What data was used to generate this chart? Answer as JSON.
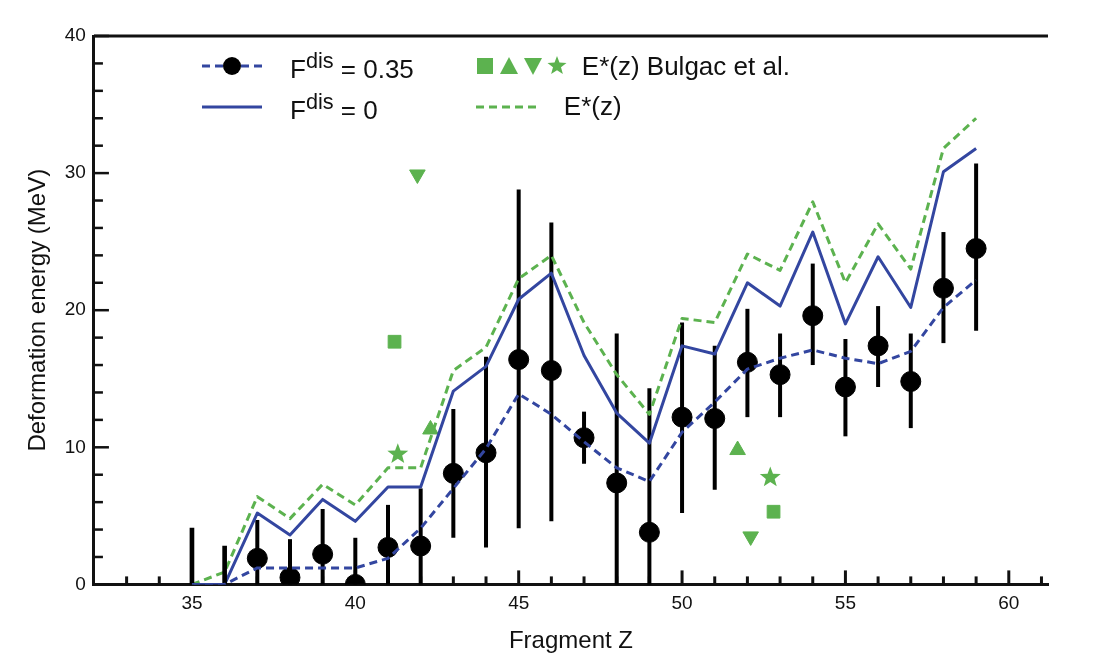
{
  "chart_data": {
    "type": "line",
    "xlabel": "Fragment Z",
    "ylabel": "Deformation energy (MeV)",
    "xlim": [
      32,
      61.2
    ],
    "ylim": [
      0,
      40
    ],
    "xticks": [
      {
        "value": 33,
        "label": null
      },
      {
        "value": 34,
        "label": null
      },
      35,
      {
        "value": 36,
        "label": null
      },
      {
        "value": 37,
        "label": null
      },
      {
        "value": 38,
        "label": null
      },
      {
        "value": 39,
        "label": null
      },
      40,
      {
        "value": 41,
        "label": null
      },
      {
        "value": 42,
        "label": null
      },
      {
        "value": 43,
        "label": null
      },
      {
        "value": 44,
        "label": null
      },
      45,
      {
        "value": 46,
        "label": null
      },
      {
        "value": 47,
        "label": null
      },
      {
        "value": 48,
        "label": null
      },
      {
        "value": 49,
        "label": null
      },
      50,
      {
        "value": 51,
        "label": null
      },
      {
        "value": 52,
        "label": null
      },
      {
        "value": 53,
        "label": null
      },
      {
        "value": 54,
        "label": null
      },
      55,
      {
        "value": 56,
        "label": null
      },
      {
        "value": 57,
        "label": null
      },
      {
        "value": 58,
        "label": null
      },
      {
        "value": 59,
        "label": null
      },
      60,
      {
        "value": 61,
        "label": null
      }
    ],
    "yticks": [
      0,
      {
        "value": 2,
        "label": null
      },
      {
        "value": 4,
        "label": null
      },
      {
        "value": 6,
        "label": null
      },
      {
        "value": 8,
        "label": null
      },
      10,
      {
        "value": 12,
        "label": null
      },
      {
        "value": 14,
        "label": null
      },
      {
        "value": 16,
        "label": null
      },
      {
        "value": 18,
        "label": null
      },
      20,
      {
        "value": 22,
        "label": null
      },
      {
        "value": 24,
        "label": null
      },
      {
        "value": 26,
        "label": null
      },
      {
        "value": 28,
        "label": null
      },
      30,
      {
        "value": 32,
        "label": null
      },
      {
        "value": 34,
        "label": null
      },
      {
        "value": 36,
        "label": null
      },
      {
        "value": 38,
        "label": null
      },
      40
    ],
    "grid": false,
    "legend": "top",
    "series": [
      {
        "name": "F$^{dis}$ = 0.35",
        "line_style": "dashed",
        "marker": "none",
        "color": "#3346a0",
        "x": [
          35,
          36,
          37,
          38,
          39,
          40,
          41,
          42,
          43,
          44,
          45,
          46,
          47,
          48,
          49,
          50,
          51,
          52,
          53,
          54,
          55,
          56,
          57,
          58,
          59
        ],
        "values": [
          0,
          0,
          1.2,
          1.2,
          1.2,
          1.2,
          1.9,
          4.1,
          7.0,
          9.9,
          13.9,
          12.4,
          10.4,
          8.5,
          7.5,
          11.1,
          13.3,
          15.7,
          16.5,
          17.1,
          16.5,
          16.1,
          17.0,
          20.2,
          22.2
        ]
      },
      {
        "type": "scatter",
        "marker": "circle",
        "color": "#000000",
        "x": [
          37,
          38,
          39,
          40,
          41,
          42,
          43,
          44,
          45,
          46,
          47,
          48,
          49,
          50,
          51,
          52,
          53,
          54,
          55,
          56,
          57,
          58,
          59
        ],
        "values": [
          1.9,
          0.5,
          2.2,
          0.0,
          2.7,
          2.8,
          8.1,
          9.6,
          16.4,
          15.6,
          10.7,
          7.4,
          3.8,
          12.2,
          12.1,
          16.2,
          15.3,
          19.6,
          14.4,
          17.4,
          14.8,
          21.6,
          24.5
        ],
        "errors": [
          [
            0,
            4.7
          ],
          [
            0,
            3.3
          ],
          [
            0,
            5.5
          ],
          [
            0,
            3.4
          ],
          [
            0,
            5.8
          ],
          [
            0,
            7.0
          ],
          [
            3.4,
            12.8
          ],
          [
            2.7,
            16.6
          ],
          [
            4.1,
            28.8
          ],
          [
            4.6,
            26.4
          ],
          [
            8.8,
            12.6
          ],
          [
            0,
            18.3
          ],
          [
            0,
            14.3
          ],
          [
            5.2,
            19.1
          ],
          [
            6.9,
            17.4
          ],
          [
            12.2,
            20.1
          ],
          [
            12.2,
            18.3
          ],
          [
            16.0,
            23.4
          ],
          [
            10.8,
            17.9
          ],
          [
            14.4,
            20.3
          ],
          [
            11.4,
            18.3
          ],
          [
            17.6,
            25.7
          ],
          [
            18.5,
            30.7
          ]
        ]
      },
      {
        "type": "bar",
        "color": "#000000",
        "x": [
          35,
          36
        ],
        "base": [
          0,
          0
        ],
        "values": [
          4.1,
          2.8
        ]
      },
      {
        "name": "F$^{dis}$ = 0",
        "line_style": "solid",
        "marker": "none",
        "color": "#3346a0",
        "x": [
          35,
          36,
          37,
          38,
          39,
          40,
          41,
          42,
          43,
          44,
          45,
          46,
          47,
          48,
          49,
          50,
          51,
          52,
          53,
          54,
          55,
          56,
          57,
          58,
          59
        ],
        "values": [
          0,
          0,
          5.2,
          3.6,
          6.2,
          4.6,
          7.1,
          7.1,
          14.1,
          15.9,
          20.8,
          22.7,
          16.7,
          12.5,
          10.3,
          17.4,
          16.8,
          22.0,
          20.3,
          25.7,
          19.0,
          23.9,
          20.2,
          30.1,
          31.8
        ]
      },
      {
        "name": "E*(z) Bulgac et al.",
        "type": "scatter",
        "marker": "star",
        "color": "#5cb24f",
        "x": [
          41.3,
          52.7
        ],
        "values": [
          9.5,
          7.8
        ]
      },
      {
        "type": "scatter",
        "marker": "square",
        "color": "#5cb24f",
        "x": [
          41.2,
          52.8
        ],
        "values": [
          17.7,
          5.3
        ]
      },
      {
        "type": "scatter",
        "marker": "triangle",
        "color": "#5cb24f",
        "x": [
          42.3,
          51.7
        ],
        "values": [
          11.3,
          9.8
        ]
      },
      {
        "type": "scatter",
        "marker": "triangle_down",
        "color": "#5cb24f",
        "x": [
          41.9,
          52.1
        ],
        "values": [
          29.9,
          3.5
        ]
      },
      {
        "name": "E*(z)",
        "line_style": "dashed",
        "marker": "none",
        "color": "#5cb24f",
        "x": [
          35,
          36,
          37,
          38,
          39,
          40,
          41,
          42,
          43,
          44,
          45,
          46,
          47,
          48,
          49,
          50,
          51,
          52,
          53,
          54,
          55,
          56,
          57,
          58,
          59
        ],
        "values": [
          0,
          0.9,
          6.4,
          4.8,
          7.3,
          5.8,
          8.5,
          8.5,
          15.6,
          17.3,
          22.3,
          24.0,
          19.1,
          15.3,
          12.4,
          19.4,
          19.1,
          24.1,
          22.9,
          27.9,
          22.0,
          26.3,
          23.0,
          31.8,
          34.0
        ]
      }
    ]
  }
}
